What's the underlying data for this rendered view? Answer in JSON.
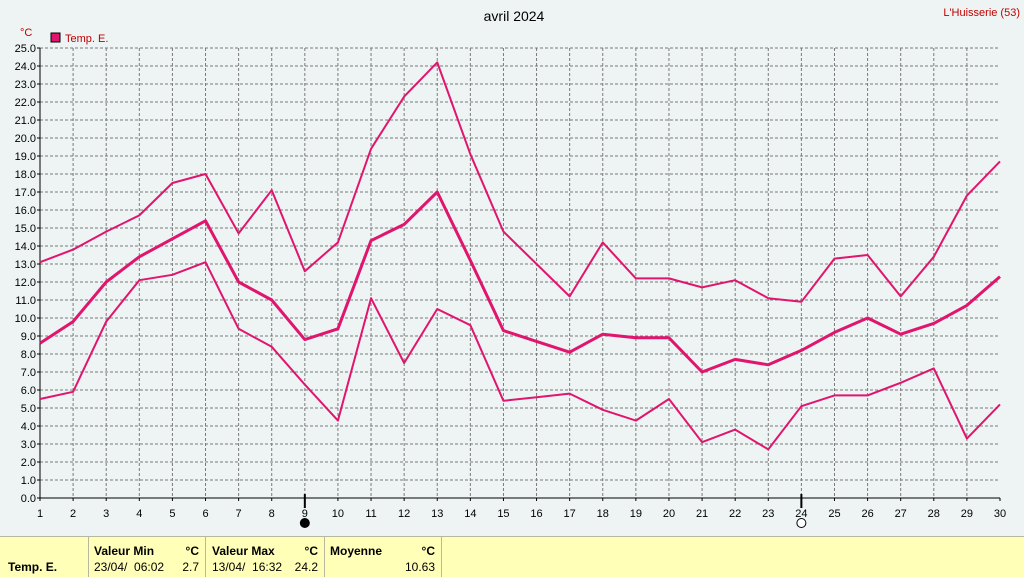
{
  "station": "L'Huisserie (53)",
  "chart_data": {
    "type": "line",
    "title": "avril 2024",
    "ylabel": "°C",
    "xlabel": "",
    "ylim": [
      0,
      25
    ],
    "xlim": [
      1,
      30
    ],
    "y_ticks": [
      "0.0",
      "1.0",
      "2.0",
      "3.0",
      "4.0",
      "5.0",
      "6.0",
      "7.0",
      "8.0",
      "9.0",
      "10.0",
      "11.0",
      "12.0",
      "13.0",
      "14.0",
      "15.0",
      "16.0",
      "17.0",
      "18.0",
      "19.0",
      "20.0",
      "21.0",
      "22.0",
      "23.0",
      "24.0",
      "25.0"
    ],
    "x": [
      1,
      2,
      3,
      4,
      5,
      6,
      7,
      8,
      9,
      10,
      11,
      12,
      13,
      14,
      15,
      16,
      17,
      18,
      19,
      20,
      21,
      22,
      23,
      24,
      25,
      26,
      27,
      28,
      29,
      30
    ],
    "x_ticks": [
      "1",
      "2",
      "3",
      "4",
      "5",
      "6",
      "7",
      "8",
      "9",
      "10",
      "11",
      "12",
      "13",
      "14",
      "15",
      "16",
      "17",
      "18",
      "19",
      "20",
      "21",
      "22",
      "23",
      "24",
      "25",
      "26",
      "27",
      "28",
      "29",
      "30"
    ],
    "grid": true,
    "legend": "top-left",
    "legend_label": "Temp. E.",
    "color": "#e0156e",
    "series": [
      {
        "role": "max",
        "values": [
          13.1,
          13.8,
          14.8,
          15.7,
          17.5,
          18.0,
          14.7,
          17.1,
          12.6,
          14.2,
          19.4,
          22.3,
          24.2,
          19.1,
          14.8,
          13.0,
          11.2,
          14.2,
          12.2,
          12.2,
          11.7,
          12.1,
          11.1,
          10.9,
          13.3,
          13.5,
          11.2,
          13.4,
          16.8,
          18.7
        ]
      },
      {
        "role": "mean",
        "values": [
          8.6,
          9.8,
          12.0,
          13.4,
          14.4,
          15.4,
          12.0,
          11.0,
          8.8,
          9.4,
          14.3,
          15.2,
          17.0,
          13.2,
          9.3,
          8.7,
          8.1,
          9.1,
          8.9,
          8.9,
          7.0,
          7.7,
          7.4,
          8.2,
          9.2,
          10.0,
          9.1,
          9.7,
          10.7,
          12.3
        ]
      },
      {
        "role": "min",
        "values": [
          5.5,
          5.9,
          9.8,
          12.1,
          12.4,
          13.1,
          9.4,
          8.4,
          6.3,
          4.3,
          11.1,
          7.5,
          10.5,
          9.6,
          5.4,
          5.6,
          5.8,
          4.9,
          4.3,
          5.5,
          3.1,
          3.8,
          2.7,
          5.1,
          5.7,
          5.7,
          6.4,
          7.2,
          3.3,
          5.2
        ]
      }
    ],
    "moon_phases": [
      {
        "day": 9,
        "phase": "new-moon"
      },
      {
        "day": 24,
        "phase": "full-moon"
      }
    ]
  },
  "stats": {
    "row_label": "Temp. E.",
    "min_header": "Valeur Min",
    "max_header": "Valeur Max",
    "mean_header": "Moyenne",
    "unit": "°C",
    "min_date": "23/04/  06:02",
    "min_value": "2.7",
    "max_date": "13/04/  16:32",
    "max_value": "24.2",
    "mean_value": "10.63"
  }
}
